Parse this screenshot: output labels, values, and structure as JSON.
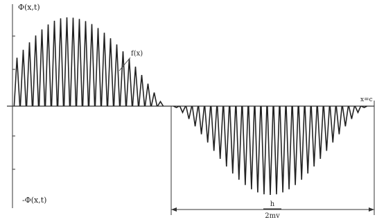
{
  "labels": {
    "y_top": "Φ(x,t)",
    "y_bottom": "-Φ(x,t)",
    "envelope": "f(x)",
    "x_end": "x=c",
    "width_numerator": "h",
    "width_denominator": "2mv"
  },
  "colors": {
    "ink": "#222222",
    "axis": "#333333"
  },
  "waveform": {
    "description_free": true,
    "upper_lobe": {
      "peak_count": 24
    },
    "lower_lobe": {
      "trough_count": 31
    }
  }
}
